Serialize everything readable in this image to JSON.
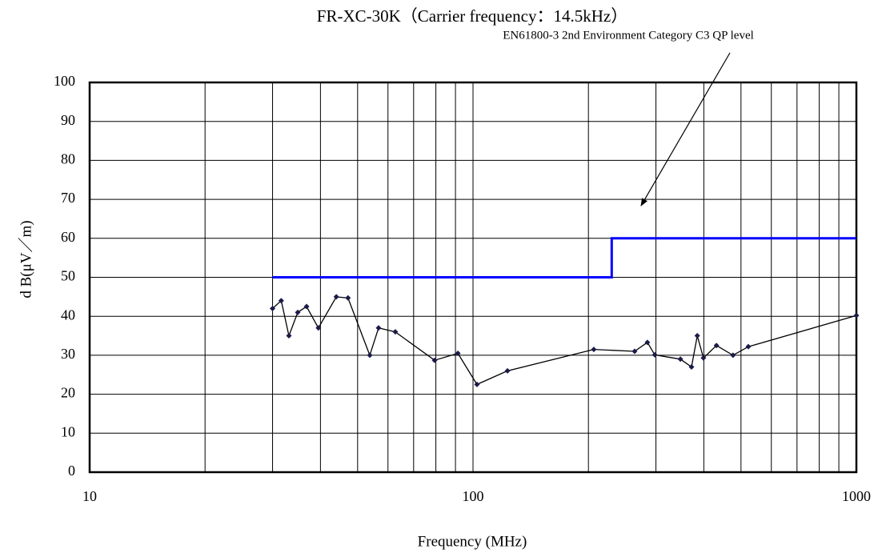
{
  "chart_data": {
    "type": "line",
    "title": "FR-XC-30K（Carrier frequency：14.5kHz）",
    "annotation": "EN61800-3 2nd Environment Category C3 QP level",
    "x_label": "Frequency (MHz)",
    "y_label": "d B(μV／m)",
    "x_scale": "log",
    "xlim": [
      10,
      1000
    ],
    "xticks": [
      10,
      100,
      1000
    ],
    "x_minor_grid": [
      20,
      30,
      40,
      50,
      60,
      70,
      80,
      90,
      200,
      300,
      400,
      500,
      600,
      700,
      800,
      900
    ],
    "ylim": [
      0,
      100
    ],
    "yticks": [
      0,
      10,
      20,
      30,
      40,
      50,
      60,
      70,
      80,
      90,
      100
    ],
    "grid": true,
    "series": [
      {
        "color": "#0000ff",
        "markers": false,
        "x": [
          30,
          230,
          230,
          1000
        ],
        "values": [
          50,
          50,
          60,
          60
        ]
      },
      {
        "color": "#000000",
        "marker_color": "#1a1a4a",
        "markers": true,
        "x": [
          30,
          31.6,
          33.1,
          34.9,
          36.8,
          39.5,
          44,
          47.2,
          53.8,
          56.7,
          62.7,
          79.4,
          91.3,
          102.4,
          123,
          206.6,
          264,
          285,
          298,
          347.5,
          371.5,
          384.5,
          399,
          431.5,
          476.6,
          522.6,
          1000
        ],
        "values": [
          42,
          44,
          35,
          41,
          42.5,
          37,
          45,
          44.7,
          30,
          37,
          36,
          28.7,
          30.5,
          22.5,
          26,
          31.5,
          31,
          33.3,
          30.1,
          29,
          27,
          35,
          29.3,
          32.5,
          30,
          32.2,
          40.2
        ]
      }
    ]
  }
}
